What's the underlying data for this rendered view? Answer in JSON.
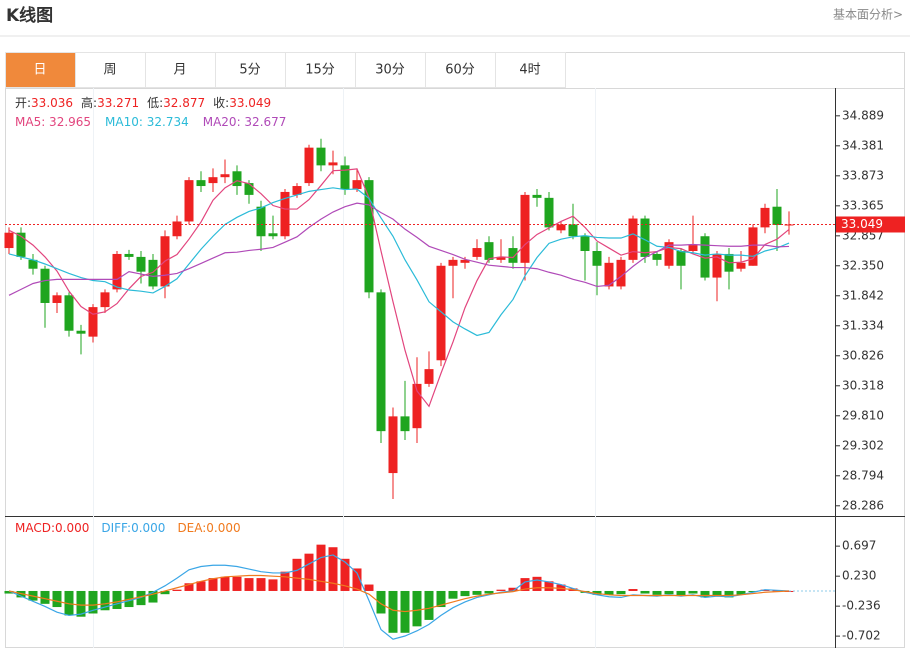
{
  "header": {
    "title": "K线图",
    "link": "基本面分析>"
  },
  "tabs": [
    "日",
    "周",
    "月",
    "5分",
    "15分",
    "30分",
    "60分",
    "4时"
  ],
  "active_tab": 0,
  "chart_data": [
    {
      "type": "candlestick",
      "up_color": "#ee2222",
      "down_color": "#1fa51f",
      "info": [
        {
          "label": "开:",
          "value": 33.036
        },
        {
          "label": "高:",
          "value": 33.271
        },
        {
          "label": "低:",
          "value": 32.877
        },
        {
          "label": "收:",
          "value": 33.049
        }
      ],
      "open": [
        32.65,
        32.91,
        32.45,
        32.3,
        31.72,
        31.85,
        31.25,
        31.15,
        31.65,
        31.95,
        32.55,
        32.5,
        32.45,
        32.0,
        32.85,
        33.1,
        33.8,
        33.75,
        33.85,
        33.95,
        33.75,
        33.35,
        32.9,
        32.85,
        33.55,
        33.75,
        34.35,
        34.05,
        34.05,
        33.65,
        33.8,
        31.9,
        28.84,
        29.8,
        29.6,
        30.35,
        30.75,
        32.35,
        32.4,
        32.5,
        32.75,
        32.45,
        32.65,
        32.4,
        33.55,
        33.5,
        32.95,
        33.05,
        32.85,
        32.6,
        32.0,
        32.0,
        32.45,
        33.15,
        32.55,
        32.35,
        32.6,
        32.6,
        32.85,
        32.15,
        32.55,
        32.3,
        32.35,
        33.0,
        33.35,
        33.036
      ],
      "high": [
        33.0,
        33.0,
        32.55,
        32.35,
        31.9,
        31.9,
        31.35,
        31.7,
        31.95,
        32.6,
        32.62,
        32.6,
        32.55,
        32.95,
        33.2,
        33.85,
        33.95,
        34.0,
        34.15,
        34.05,
        33.8,
        33.45,
        33.2,
        33.65,
        33.75,
        34.4,
        34.5,
        34.3,
        34.2,
        34.0,
        33.85,
        31.95,
        29.95,
        30.4,
        30.8,
        30.9,
        32.4,
        32.5,
        32.5,
        32.8,
        32.85,
        32.8,
        32.85,
        33.6,
        33.65,
        33.6,
        33.1,
        33.4,
        32.9,
        32.75,
        32.5,
        32.5,
        33.2,
        33.2,
        32.6,
        32.8,
        32.65,
        33.2,
        32.9,
        32.6,
        32.65,
        32.6,
        33.05,
        33.4,
        33.65,
        33.271
      ],
      "low": [
        32.55,
        32.45,
        32.2,
        31.3,
        31.55,
        31.15,
        30.85,
        31.05,
        31.55,
        31.9,
        32.45,
        32.05,
        31.95,
        31.8,
        32.8,
        33.05,
        33.6,
        33.6,
        33.75,
        33.55,
        33.4,
        32.6,
        32.8,
        32.8,
        33.5,
        33.7,
        33.95,
        33.9,
        33.55,
        33.6,
        31.8,
        29.35,
        28.4,
        29.4,
        29.35,
        30.3,
        30.65,
        31.8,
        32.3,
        32.45,
        32.4,
        32.4,
        32.3,
        32.1,
        33.35,
        32.95,
        32.9,
        32.8,
        32.1,
        31.85,
        31.95,
        31.95,
        32.4,
        32.4,
        32.35,
        32.3,
        31.95,
        32.55,
        32.1,
        31.75,
        31.95,
        32.25,
        32.35,
        32.9,
        32.6,
        32.877
      ],
      "close": [
        32.91,
        32.5,
        32.3,
        31.72,
        31.85,
        31.25,
        31.2,
        31.65,
        31.9,
        32.55,
        32.5,
        32.25,
        32.0,
        32.85,
        33.1,
        33.8,
        33.7,
        33.85,
        33.9,
        33.7,
        33.55,
        32.85,
        32.85,
        33.6,
        33.7,
        34.35,
        34.05,
        34.1,
        33.65,
        33.8,
        31.9,
        29.55,
        29.8,
        29.55,
        30.35,
        30.6,
        32.35,
        32.45,
        32.45,
        32.65,
        32.45,
        32.5,
        32.4,
        33.55,
        33.5,
        33.0,
        33.05,
        32.85,
        32.6,
        32.35,
        32.4,
        32.45,
        33.15,
        32.5,
        32.45,
        32.75,
        32.35,
        32.7,
        32.15,
        32.55,
        32.25,
        32.4,
        33.0,
        33.33,
        33.04,
        33.049
      ],
      "series": [
        {
          "name": "MA5: 32.965",
          "color": "#e2457e",
          "values": [
            32.95,
            32.85,
            32.7,
            32.5,
            32.26,
            31.92,
            31.66,
            31.53,
            31.57,
            31.71,
            31.96,
            32.17,
            32.24,
            32.43,
            32.54,
            32.8,
            33.09,
            33.46,
            33.67,
            33.79,
            33.74,
            33.57,
            33.37,
            33.31,
            33.31,
            33.47,
            33.71,
            33.96,
            33.97,
            33.99,
            33.5,
            32.6,
            31.74,
            30.92,
            30.23,
            29.97,
            30.53,
            31.06,
            31.64,
            32.1,
            32.47,
            32.5,
            32.49,
            32.71,
            32.88,
            32.99,
            33.1,
            33.19,
            33.0,
            32.77,
            32.65,
            32.53,
            32.59,
            32.57,
            32.59,
            32.66,
            32.64,
            32.55,
            32.48,
            32.5,
            32.4,
            32.41,
            32.47,
            32.71,
            32.8,
            32.965
          ]
        },
        {
          "name": "MA10: 32.734",
          "color": "#2bbbd8",
          "values": [
            32.55,
            32.5,
            32.45,
            32.38,
            32.3,
            32.22,
            32.15,
            32.1,
            32.08,
            31.99,
            31.94,
            31.92,
            31.89,
            32.0,
            32.13,
            32.38,
            32.63,
            32.85,
            33.05,
            33.17,
            33.27,
            33.33,
            33.42,
            33.49,
            33.55,
            33.61,
            33.64,
            33.67,
            33.64,
            33.65,
            33.49,
            33.16,
            32.85,
            32.45,
            32.11,
            31.74,
            31.57,
            31.4,
            31.28,
            31.17,
            31.22,
            31.52,
            31.78,
            32.18,
            32.49,
            32.73,
            32.8,
            32.84,
            32.86,
            32.83,
            32.82,
            32.82,
            32.89,
            32.79,
            32.68,
            32.66,
            32.59,
            32.57,
            32.53,
            32.55,
            32.53,
            32.53,
            32.51,
            32.6,
            32.65,
            32.734
          ]
        },
        {
          "name": "MA20: 32.677",
          "color": "#b04ab8",
          "values": [
            31.85,
            31.95,
            32.05,
            32.1,
            32.12,
            32.12,
            32.12,
            32.12,
            32.12,
            32.12,
            32.25,
            32.21,
            32.17,
            32.19,
            32.22,
            32.3,
            32.39,
            32.48,
            32.57,
            32.58,
            32.61,
            32.63,
            32.66,
            32.75,
            32.84,
            33.0,
            33.14,
            33.26,
            33.35,
            33.41,
            33.38,
            33.25,
            33.14,
            32.97,
            32.83,
            32.68,
            32.61,
            32.54,
            32.46,
            32.41,
            32.36,
            32.34,
            32.32,
            32.32,
            32.3,
            32.24,
            32.19,
            32.12,
            32.07,
            32.0,
            32.02,
            32.17,
            32.34,
            32.49,
            32.59,
            32.7,
            32.7,
            32.71,
            32.7,
            32.69,
            32.68,
            32.68,
            32.7,
            32.7,
            32.67,
            32.677
          ]
        }
      ],
      "last_price": 33.049,
      "ylim": [
        28.13,
        35.36
      ],
      "yticks": [
        34.889,
        34.381,
        33.873,
        33.365,
        32.857,
        {
          "value": 32.35,
          "label": "32.350"
        },
        31.842,
        31.334,
        30.826,
        30.318,
        {
          "value": 29.81,
          "label": "29.810"
        },
        29.302,
        28.794,
        28.286
      ]
    },
    {
      "type": "macd",
      "bars": {
        "name": "MACD:0.000",
        "up_color": "#ee2222",
        "down_color": "#1fa51f",
        "values": [
          -0.04,
          -0.1,
          -0.15,
          -0.2,
          -0.25,
          -0.38,
          -0.4,
          -0.35,
          -0.3,
          -0.28,
          -0.25,
          -0.22,
          -0.18,
          -0.05,
          0.02,
          0.12,
          0.15,
          0.2,
          0.22,
          0.22,
          0.2,
          0.2,
          0.18,
          0.3,
          0.5,
          0.58,
          0.72,
          0.68,
          0.5,
          0.35,
          0.1,
          -0.35,
          -0.65,
          -0.65,
          -0.55,
          -0.45,
          -0.25,
          -0.12,
          -0.08,
          -0.06,
          -0.04,
          0.02,
          0.05,
          0.2,
          0.22,
          0.15,
          0.1,
          0.04,
          -0.03,
          -0.06,
          -0.06,
          -0.05,
          0.03,
          -0.04,
          -0.06,
          -0.05,
          -0.07,
          -0.04,
          -0.1,
          -0.08,
          -0.1,
          -0.06,
          -0.01,
          0.02,
          0.01,
          0
        ]
      },
      "series": [
        {
          "name": "DIFF:0.000",
          "color": "#3aa6e6",
          "values": [
            0,
            -0.08,
            -0.16,
            -0.24,
            -0.33,
            -0.38,
            -0.36,
            -0.3,
            -0.25,
            -0.2,
            -0.15,
            -0.1,
            -0.02,
            0.08,
            0.2,
            0.33,
            0.38,
            0.4,
            0.4,
            0.38,
            0.34,
            0.3,
            0.28,
            0.28,
            0.32,
            0.42,
            0.52,
            0.56,
            0.45,
            0.28,
            -0.15,
            -0.6,
            -0.75,
            -0.7,
            -0.62,
            -0.52,
            -0.38,
            -0.26,
            -0.17,
            -0.1,
            -0.06,
            -0.02,
            0,
            0.14,
            0.17,
            0.14,
            0.1,
            0.04,
            -0.02,
            -0.06,
            -0.09,
            -0.1,
            -0.06,
            -0.07,
            -0.08,
            -0.06,
            -0.08,
            -0.06,
            -0.1,
            -0.08,
            -0.09,
            -0.06,
            -0.02,
            0.02,
            0.01,
            0
          ]
        },
        {
          "name": "DEA:0.000",
          "color": "#f07a1e",
          "values": [
            0,
            -0.04,
            -0.08,
            -0.12,
            -0.16,
            -0.2,
            -0.22,
            -0.22,
            -0.2,
            -0.17,
            -0.13,
            -0.09,
            -0.05,
            0,
            0.05,
            0.1,
            0.15,
            0.19,
            0.22,
            0.23,
            0.24,
            0.24,
            0.23,
            0.22,
            0.2,
            0.18,
            0.15,
            0.12,
            0.08,
            0.03,
            -0.05,
            -0.2,
            -0.3,
            -0.32,
            -0.3,
            -0.27,
            -0.22,
            -0.17,
            -0.12,
            -0.08,
            -0.05,
            -0.03,
            -0.01,
            0.03,
            0.05,
            0.05,
            0.04,
            0.02,
            -0.01,
            -0.04,
            -0.06,
            -0.07,
            -0.07,
            -0.07,
            -0.07,
            -0.07,
            -0.07,
            -0.07,
            -0.07,
            -0.07,
            -0.07,
            -0.06,
            -0.04,
            -0.02,
            -0.01,
            0
          ]
        }
      ],
      "ylim": [
        -0.84,
        1.15
      ],
      "yticks": [
        0.697,
        {
          "value": 0.23,
          "label": "0.230"
        },
        -0.236,
        -0.702
      ]
    }
  ]
}
